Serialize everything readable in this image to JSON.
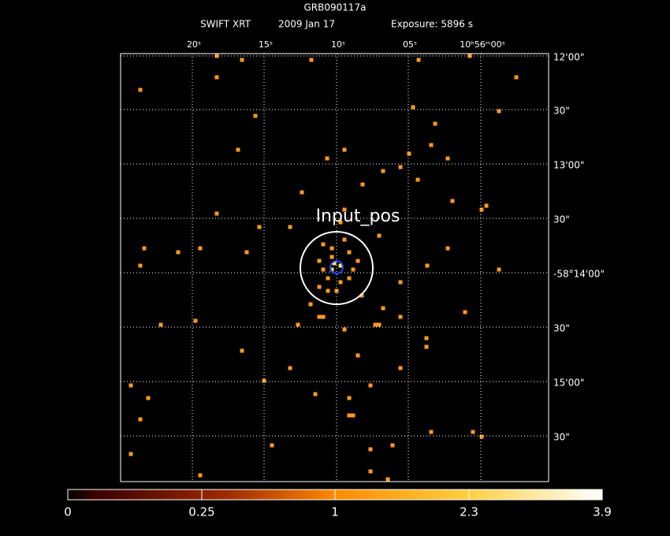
{
  "header": {
    "title": "GRB090117a",
    "subtitle": [
      "SWIFT XRT",
      "2009 Jan 17",
      "Exposure: 5896 s"
    ]
  },
  "top_axis_labels": [
    "20ˢ",
    "15ˢ",
    "10ˢ",
    "05ˢ",
    "10ʰ56ᵐ00ˢ"
  ],
  "right_axis_labels": [
    "12'00\"",
    "30\"",
    "13'00\"",
    "30\"",
    "-58°14'00\"",
    "30\"",
    "15'00\"",
    "30\""
  ],
  "annotation": "Input_pos",
  "colorbar": {
    "labels": [
      "0",
      "0.25",
      "1",
      "2.3",
      "3.9"
    ]
  }
}
